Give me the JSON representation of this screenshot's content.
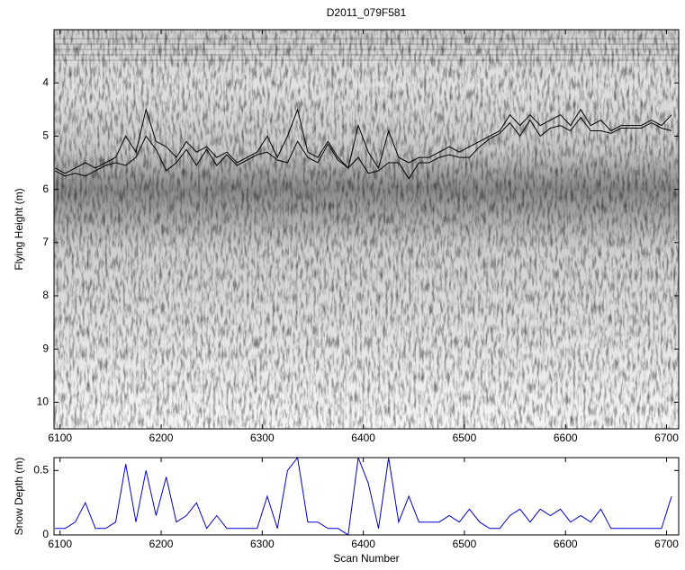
{
  "chart_data": [
    {
      "type": "line",
      "title": "D2011_079F581",
      "y_label": "Flying Height (m)",
      "reversed_y": true,
      "x": [
        6095,
        6105,
        6115,
        6125,
        6135,
        6145,
        6155,
        6165,
        6175,
        6185,
        6195,
        6205,
        6215,
        6225,
        6235,
        6245,
        6255,
        6265,
        6275,
        6285,
        6295,
        6305,
        6315,
        6325,
        6335,
        6345,
        6355,
        6365,
        6375,
        6385,
        6395,
        6405,
        6415,
        6425,
        6435,
        6445,
        6455,
        6465,
        6475,
        6485,
        6495,
        6505,
        6515,
        6525,
        6535,
        6545,
        6555,
        6565,
        6575,
        6585,
        6595,
        6605,
        6615,
        6625,
        6635,
        6645,
        6655,
        6665,
        6675,
        6685,
        6695,
        6705
      ],
      "series": [
        {
          "color": "#000000",
          "values": [
            5.6,
            5.7,
            5.6,
            5.5,
            5.6,
            5.5,
            5.4,
            5.0,
            5.3,
            4.5,
            5.1,
            5.2,
            5.4,
            5.1,
            5.3,
            5.2,
            5.4,
            5.3,
            5.5,
            5.4,
            5.3,
            5.0,
            5.4,
            5.0,
            4.5,
            5.3,
            5.4,
            5.1,
            5.4,
            5.6,
            4.8,
            5.3,
            5.6,
            4.9,
            5.4,
            5.5,
            5.4,
            5.4,
            5.3,
            5.2,
            5.3,
            5.2,
            5.1,
            5.0,
            4.9,
            4.6,
            4.8,
            4.6,
            4.8,
            4.7,
            4.6,
            4.8,
            4.5,
            4.8,
            4.7,
            4.9,
            4.8,
            4.8,
            4.8,
            4.7,
            4.8,
            4.6
          ]
        },
        {
          "color": "#000000",
          "values": [
            5.65,
            5.75,
            5.7,
            5.75,
            5.65,
            5.55,
            5.5,
            5.55,
            5.4,
            5.0,
            5.25,
            5.65,
            5.5,
            5.25,
            5.55,
            5.25,
            5.55,
            5.35,
            5.55,
            5.45,
            5.35,
            5.3,
            5.45,
            5.5,
            5.1,
            5.4,
            5.5,
            5.15,
            5.45,
            5.6,
            5.4,
            5.7,
            5.65,
            5.5,
            5.5,
            5.8,
            5.5,
            5.5,
            5.4,
            5.35,
            5.4,
            5.4,
            5.2,
            5.05,
            4.95,
            4.75,
            5.0,
            4.7,
            5.0,
            4.85,
            4.8,
            4.9,
            4.65,
            4.9,
            4.9,
            4.95,
            4.85,
            4.85,
            4.85,
            4.75,
            4.85,
            4.9
          ]
        }
      ],
      "xlim": [
        6094,
        6712
      ],
      "xticks": [
        6100,
        6200,
        6300,
        6400,
        6500,
        6600,
        6700
      ],
      "ylim": [
        10.5,
        3
      ],
      "yticks": [
        4,
        5,
        6,
        7,
        8,
        9,
        10
      ]
    },
    {
      "type": "line",
      "x_label": "Scan Number",
      "y_label": "Snow Depth (m)",
      "x": [
        6095,
        6105,
        6115,
        6125,
        6135,
        6145,
        6155,
        6165,
        6175,
        6185,
        6195,
        6205,
        6215,
        6225,
        6235,
        6245,
        6255,
        6265,
        6275,
        6285,
        6295,
        6305,
        6315,
        6325,
        6335,
        6345,
        6355,
        6365,
        6375,
        6385,
        6395,
        6405,
        6415,
        6425,
        6435,
        6445,
        6455,
        6465,
        6475,
        6485,
        6495,
        6505,
        6515,
        6525,
        6535,
        6545,
        6555,
        6565,
        6575,
        6585,
        6595,
        6605,
        6615,
        6625,
        6635,
        6645,
        6655,
        6665,
        6675,
        6685,
        6695,
        6705
      ],
      "series": [
        {
          "color": "#0000cc",
          "values": [
            0.05,
            0.05,
            0.1,
            0.25,
            0.05,
            0.05,
            0.1,
            0.55,
            0.1,
            0.5,
            0.15,
            0.45,
            0.1,
            0.15,
            0.25,
            0.05,
            0.15,
            0.05,
            0.05,
            0.05,
            0.05,
            0.3,
            0.05,
            0.5,
            0.6,
            0.1,
            0.1,
            0.05,
            0.05,
            0.0,
            0.6,
            0.4,
            0.05,
            0.6,
            0.1,
            0.3,
            0.1,
            0.1,
            0.1,
            0.15,
            0.1,
            0.2,
            0.1,
            0.05,
            0.05,
            0.15,
            0.2,
            0.1,
            0.2,
            0.15,
            0.2,
            0.1,
            0.15,
            0.1,
            0.2,
            0.05,
            0.05,
            0.05,
            0.05,
            0.05,
            0.05,
            0.3
          ]
        }
      ],
      "xlim": [
        6094,
        6712
      ],
      "xticks": [
        6100,
        6200,
        6300,
        6400,
        6500,
        6600,
        6700
      ],
      "ylim": [
        0,
        0.6
      ],
      "yticks": [
        0,
        0.5
      ]
    }
  ]
}
